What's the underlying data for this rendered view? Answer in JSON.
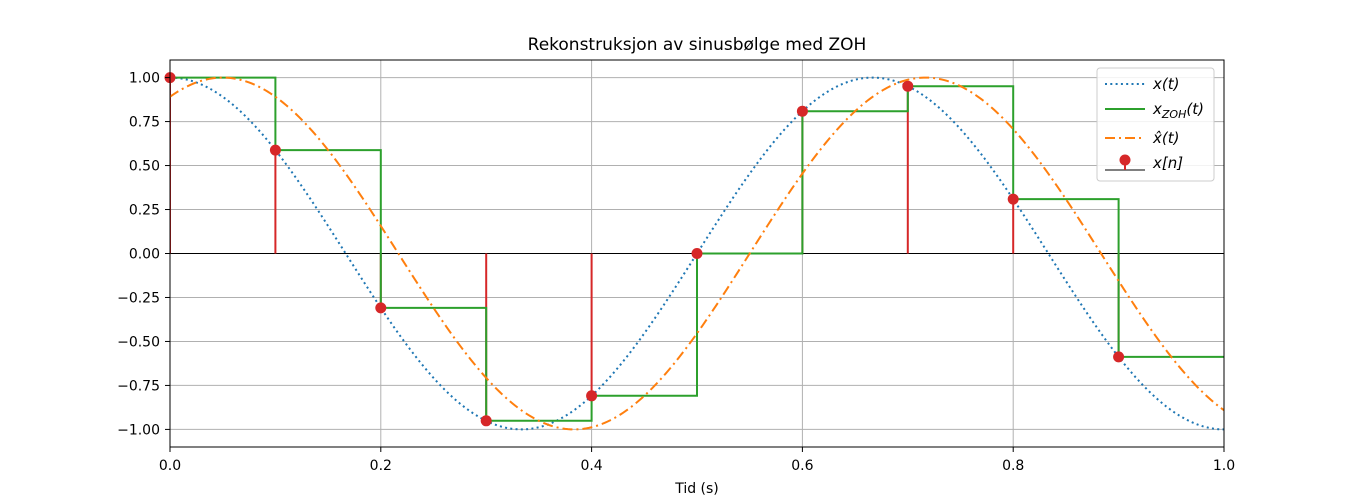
{
  "chart_data": {
    "type": "line",
    "title": "Rekonstruksjon av sinusbølge med ZOH",
    "xlabel": "Tid (s)",
    "ylabel": "",
    "xlim": [
      0.0,
      1.0
    ],
    "ylim": [
      -1.1,
      1.1
    ],
    "x_ticks": [
      0.0,
      0.2,
      0.4,
      0.6,
      0.8,
      1.0
    ],
    "x_tick_labels": [
      "0.0",
      "0.2",
      "0.4",
      "0.6",
      "0.8",
      "1.0"
    ],
    "y_ticks": [
      1.0,
      0.75,
      0.5,
      0.25,
      0.0,
      -0.25,
      -0.5,
      -0.75,
      -1.0
    ],
    "y_tick_labels": [
      "1.00",
      "0.75",
      "0.50",
      "0.25",
      "0.00",
      "−0.25",
      "−0.50",
      "−0.75",
      "−1.00"
    ],
    "grid": true,
    "legend_position": "top-right",
    "sample_times": [
      0.0,
      0.1,
      0.2,
      0.3,
      0.4,
      0.5,
      0.6,
      0.7,
      0.8,
      0.9
    ],
    "sample_values": [
      1.0,
      0.5878,
      -0.309,
      -0.9511,
      -0.809,
      0.0,
      0.809,
      0.9511,
      0.309,
      -0.5878
    ],
    "series": [
      {
        "name": "x(t)",
        "kind": "continuous",
        "frequency_hz": 1.5,
        "phase_delay_s": 0.0,
        "style": "dotted",
        "color": "#1f77b4"
      },
      {
        "name": "x_ZOH(t)",
        "kind": "step",
        "hold_s": 0.1,
        "style": "solid",
        "color": "#2ca02c"
      },
      {
        "name": "x̂(t)",
        "kind": "continuous",
        "frequency_hz": 1.5,
        "phase_delay_s": 0.05,
        "style": "dashdot",
        "color": "#ff7f0e"
      },
      {
        "name": "x[n]",
        "kind": "stem",
        "style": "stem",
        "color": "#d62728"
      }
    ],
    "legend": [
      {
        "label_main": "x(t)",
        "label_sub": ""
      },
      {
        "label_main": "x(t)",
        "label_sub": "ZOH"
      },
      {
        "label_main": "x̂(t)",
        "label_sub": ""
      },
      {
        "label_main": "x[n]",
        "label_sub": ""
      }
    ]
  }
}
